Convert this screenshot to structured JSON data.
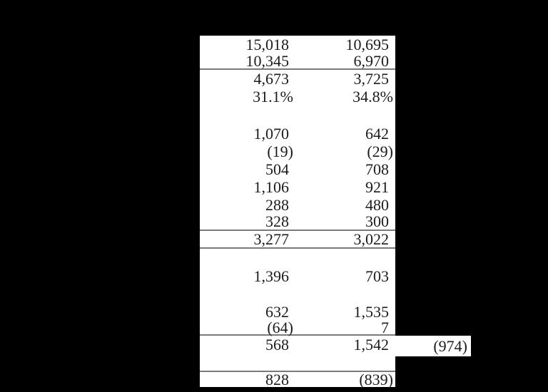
{
  "colors": {
    "background": "#000000",
    "table_background": "#ffffff",
    "text": "#1b1b1b",
    "rule_line": "#7a7a7a"
  },
  "table": {
    "rows": [
      {
        "col1": "15,018",
        "col2": "10,695"
      },
      {
        "col1": "10,345",
        "col2": "6,970"
      },
      {
        "col1": "4,673",
        "col2": "3,725"
      },
      {
        "col1": "31.1%",
        "col2": "34.8%"
      },
      {
        "col1": "1,070",
        "col2": "642"
      },
      {
        "col1": "(19)",
        "col2": "(29)"
      },
      {
        "col1": "504",
        "col2": "708"
      },
      {
        "col1": "1,106",
        "col2": "921"
      },
      {
        "col1": "288",
        "col2": "480"
      },
      {
        "col1": "328",
        "col2": "300"
      },
      {
        "col1": "3,277",
        "col2": "3,022"
      },
      {
        "col1": "1,396",
        "col2": "703"
      },
      {
        "col1": "632",
        "col2": "1,535"
      },
      {
        "col1": "(64)",
        "col2": "7"
      },
      {
        "col1": "568",
        "col2": "1,542"
      },
      {
        "col1": "828",
        "col2": "(839)"
      }
    ],
    "side_note": "(974)"
  }
}
